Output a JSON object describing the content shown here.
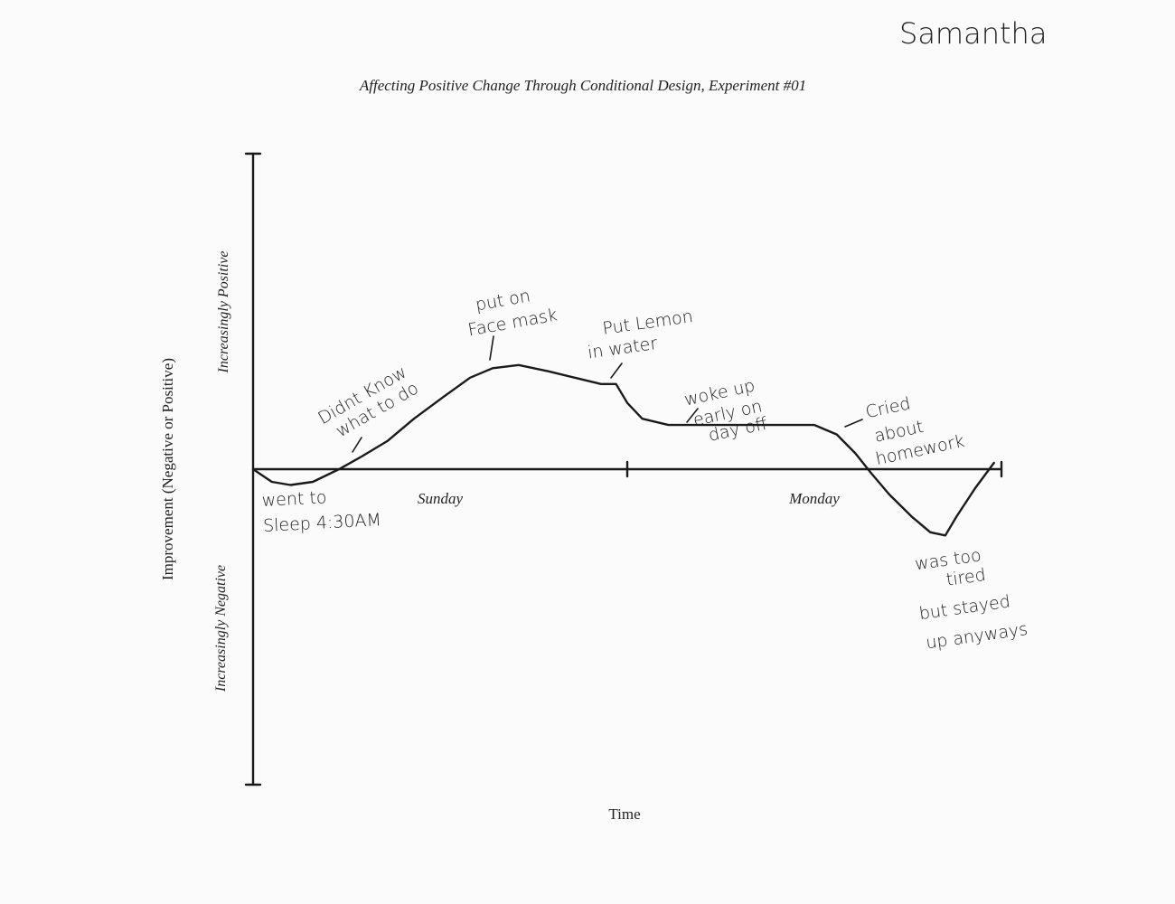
{
  "signature": "Samantha",
  "chart_data": {
    "type": "line",
    "title": "Affecting Positive Change Through Conditional Design, Experiment #01",
    "y_label": "Improvement (Negative or Positive)",
    "y_positive_label": "Increasingly Positive",
    "y_negative_label": "Increasingly Negative",
    "x_label": "Time",
    "categories": [
      "Sunday",
      "Monday"
    ],
    "xlim": [
      0,
      2
    ],
    "ylim": [
      -1,
      1
    ],
    "series": [
      {
        "color": "#1a1a1a",
        "x": [
          0,
          0.05,
          0.1,
          0.16,
          0.23,
          0.29,
          0.36,
          0.43,
          0.51,
          0.58,
          0.64,
          0.71,
          0.79,
          0.86,
          0.93,
          0.97,
          1.0,
          1.04,
          1.11,
          1.21,
          1.3,
          1.4,
          1.5,
          1.56,
          1.61,
          1.65,
          1.7,
          1.76,
          1.81,
          1.85,
          1.88,
          1.93,
          1.98
        ],
        "values": [
          0,
          -0.04,
          -0.05,
          -0.04,
          0,
          0.04,
          0.09,
          0.16,
          0.23,
          0.29,
          0.32,
          0.33,
          0.31,
          0.29,
          0.27,
          0.27,
          0.21,
          0.16,
          0.14,
          0.14,
          0.14,
          0.14,
          0.14,
          0.11,
          0.05,
          -0.01,
          -0.08,
          -0.15,
          -0.2,
          -0.21,
          -0.15,
          -0.06,
          0.02
        ]
      }
    ],
    "annotations": [
      {
        "lines": [
          "went to",
          "Sleep 4:30AM"
        ]
      },
      {
        "lines": [
          "Didnt Know",
          "what to do"
        ]
      },
      {
        "lines": [
          "put on",
          "Face mask"
        ]
      },
      {
        "lines": [
          "Put Lemon",
          "in water"
        ]
      },
      {
        "lines": [
          "woke up",
          "early on",
          "day off"
        ]
      },
      {
        "lines": [
          "Cried",
          "about",
          "homework"
        ]
      },
      {
        "lines": [
          "was too",
          "tired",
          "but stayed",
          "up anyways"
        ]
      }
    ]
  }
}
